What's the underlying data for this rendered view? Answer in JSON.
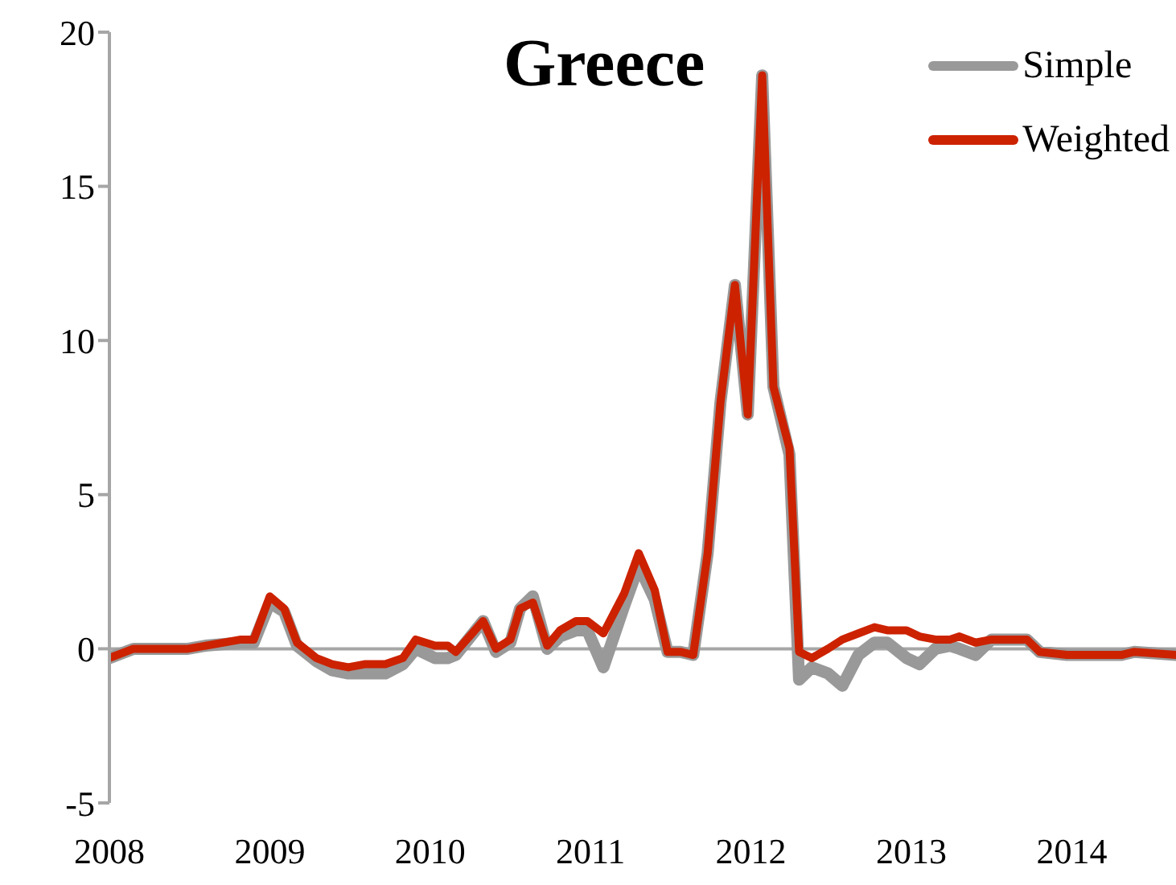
{
  "chart_data": {
    "type": "line",
    "title": "Greece",
    "x": [
      2008.0,
      2008.15,
      2008.49,
      2008.6,
      2008.82,
      2008.9,
      2009.0,
      2009.09,
      2009.17,
      2009.29,
      2009.39,
      2009.49,
      2009.59,
      2009.72,
      2009.83,
      2009.91,
      2010.03,
      2010.11,
      2010.16,
      2010.33,
      2010.41,
      2010.5,
      2010.56,
      2010.64,
      2010.73,
      2010.81,
      2010.91,
      2010.98,
      2011.08,
      2011.21,
      2011.3,
      2011.4,
      2011.48,
      2011.56,
      2011.64,
      2011.73,
      2011.81,
      2011.9,
      2011.98,
      2012.07,
      2012.14,
      2012.24,
      2012.3,
      2012.38,
      2012.48,
      2012.57,
      2012.67,
      2012.77,
      2012.85,
      2012.97,
      2013.05,
      2013.15,
      2013.24,
      2013.3,
      2013.4,
      2013.5,
      2013.72,
      2013.8,
      2013.97,
      2014.31,
      2014.39,
      2014.65
    ],
    "series": [
      {
        "name": "Simple",
        "color": "#999999",
        "values": [
          -0.3,
          0,
          0,
          0.1,
          0.2,
          0.2,
          1.5,
          1.2,
          0.1,
          -0.4,
          -0.7,
          -0.8,
          -0.8,
          -0.8,
          -0.5,
          0,
          -0.3,
          -0.3,
          -0.2,
          0.9,
          -0.1,
          0.2,
          1.3,
          1.7,
          0,
          0.4,
          0.6,
          0.6,
          -0.6,
          1.4,
          2.7,
          1.6,
          -0.1,
          -0.1,
          -0.2,
          3.1,
          8,
          11.8,
          7.6,
          18.6,
          8.5,
          6.3,
          -1,
          -0.6,
          -0.8,
          -1.2,
          -0.2,
          0.2,
          0.2,
          -0.3,
          -0.5,
          0,
          0.1,
          0,
          -0.2,
          0.3,
          0.3,
          -0.1,
          -0.2,
          -0.2,
          -0.1,
          -0.2
        ]
      },
      {
        "name": "Weighted",
        "color": "#cc2200",
        "values": [
          -0.3,
          0,
          0,
          0.1,
          0.3,
          0.3,
          1.7,
          1.3,
          0.2,
          -0.3,
          -0.5,
          -0.6,
          -0.5,
          -0.5,
          -0.3,
          0.3,
          0.1,
          0.1,
          -0.1,
          0.9,
          0,
          0.3,
          1.3,
          1.5,
          0.1,
          0.6,
          0.9,
          0.9,
          0.5,
          1.8,
          3.1,
          1.9,
          -0.1,
          -0.1,
          -0.2,
          3.1,
          8,
          11.8,
          7.6,
          18.6,
          8.5,
          6.5,
          -0.1,
          -0.3,
          0,
          0.3,
          0.5,
          0.7,
          0.6,
          0.6,
          0.4,
          0.3,
          0.3,
          0.4,
          0.2,
          0.3,
          0.3,
          -0.1,
          -0.2,
          -0.2,
          -0.1,
          -0.2
        ]
      }
    ],
    "xlim": [
      2008,
      2014.65
    ],
    "xticks": [
      2008,
      2009,
      2010,
      2011,
      2012,
      2013,
      2014
    ],
    "ylim": [
      -5,
      20
    ],
    "yticks": [
      -5,
      0,
      5,
      10,
      15,
      20
    ],
    "ref_lines": [
      {
        "axis": "y",
        "value": 0,
        "color": "#a6a6a6"
      }
    ],
    "grid": false,
    "legend": "top right",
    "marker": "none",
    "line_style": "solid"
  }
}
